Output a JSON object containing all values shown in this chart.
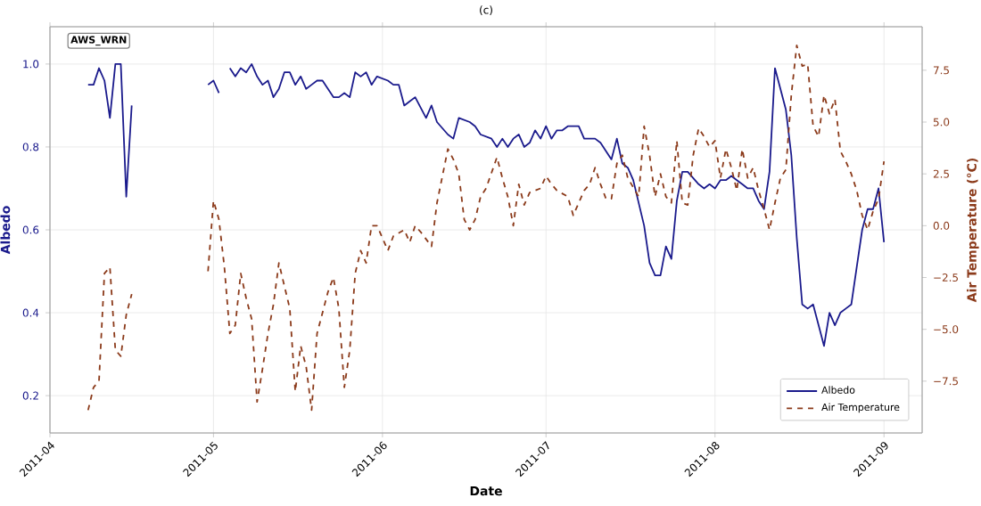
{
  "chart_data": {
    "type": "line",
    "title": "(c)",
    "xlabel": "Date",
    "ylabel": "Albedo",
    "y2label": "Air Temperature (°C)",
    "annotations": [
      "AWS_WRN"
    ],
    "xlim": [
      "2011-04-01",
      "2011-09-08"
    ],
    "xticks": [
      {
        "value": "2011-04-01",
        "label": "2011-04"
      },
      {
        "value": "2011-05-01",
        "label": "2011-05"
      },
      {
        "value": "2011-06-01",
        "label": "2011-06"
      },
      {
        "value": "2011-07-01",
        "label": "2011-07"
      },
      {
        "value": "2011-08-01",
        "label": "2011-08"
      },
      {
        "value": "2011-09-01",
        "label": "2011-09"
      }
    ],
    "ylim": [
      0.11,
      1.09
    ],
    "yticks": [
      0.2,
      0.4,
      0.6,
      0.8,
      {
        "value": 1.0,
        "label": "1.0"
      }
    ],
    "y2lim": [
      -10.0,
      9.6
    ],
    "y2ticks": [
      {
        "value": -7.5,
        "label": "−7.5"
      },
      {
        "value": -5.0,
        "label": "−5.0"
      },
      {
        "value": -2.5,
        "label": "−2.5"
      },
      {
        "value": 0.0,
        "label": "0.0"
      },
      {
        "value": 2.5,
        "label": "2.5"
      },
      {
        "value": 5.0,
        "label": "5.0"
      },
      {
        "value": 7.5,
        "label": "7.5"
      }
    ],
    "grid": true,
    "legend": "bottom right",
    "series": [
      {
        "name": "Albedo",
        "color": "#1a1a8c",
        "line_style": "solid",
        "x": [
          "2011-04-08",
          "2011-04-09",
          "2011-04-10",
          "2011-04-11",
          "2011-04-12",
          "2011-04-13",
          "2011-04-14",
          "2011-04-15",
          "2011-04-16",
          "2011-04-17",
          "2011-04-30",
          "2011-05-01",
          "2011-05-02",
          "2011-05-03",
          "2011-05-04",
          "2011-05-05",
          "2011-05-06",
          "2011-05-07",
          "2011-05-08",
          "2011-05-09",
          "2011-05-10",
          "2011-05-11",
          "2011-05-12",
          "2011-05-13",
          "2011-05-14",
          "2011-05-15",
          "2011-05-16",
          "2011-05-17",
          "2011-05-18",
          "2011-05-19",
          "2011-05-20",
          "2011-05-21",
          "2011-05-22",
          "2011-05-23",
          "2011-05-24",
          "2011-05-25",
          "2011-05-26",
          "2011-05-27",
          "2011-05-28",
          "2011-05-29",
          "2011-05-30",
          "2011-05-31",
          "2011-06-02",
          "2011-06-03",
          "2011-06-04",
          "2011-06-05",
          "2011-06-06",
          "2011-06-07",
          "2011-06-09",
          "2011-06-10",
          "2011-06-11",
          "2011-06-13",
          "2011-06-14",
          "2011-06-15",
          "2011-06-17",
          "2011-06-18",
          "2011-06-19",
          "2011-06-21",
          "2011-06-22",
          "2011-06-23",
          "2011-06-24",
          "2011-06-25",
          "2011-06-26",
          "2011-06-27",
          "2011-06-28",
          "2011-06-29",
          "2011-06-30",
          "2011-07-01",
          "2011-07-02",
          "2011-07-03",
          "2011-07-04",
          "2011-07-05",
          "2011-07-07",
          "2011-07-08",
          "2011-07-10",
          "2011-07-11",
          "2011-07-13",
          "2011-07-14",
          "2011-07-15",
          "2011-07-16",
          "2011-07-17",
          "2011-07-19",
          "2011-07-20",
          "2011-07-21",
          "2011-07-22",
          "2011-07-23",
          "2011-07-24",
          "2011-07-25",
          "2011-07-26",
          "2011-07-27",
          "2011-07-29",
          "2011-07-30",
          "2011-07-31",
          "2011-08-01",
          "2011-08-02",
          "2011-08-03",
          "2011-08-04",
          "2011-08-05",
          "2011-08-06",
          "2011-08-07",
          "2011-08-08",
          "2011-08-09",
          "2011-08-10",
          "2011-08-11",
          "2011-08-12",
          "2011-08-13",
          "2011-08-14",
          "2011-08-15",
          "2011-08-16",
          "2011-08-17",
          "2011-08-18",
          "2011-08-19",
          "2011-08-20",
          "2011-08-21",
          "2011-08-22",
          "2011-08-23",
          "2011-08-24",
          "2011-08-25",
          "2011-08-26",
          "2011-08-27",
          "2011-08-28",
          "2011-08-29",
          "2011-08-30",
          "2011-08-31",
          "2011-09-01"
        ],
        "values": [
          0.95,
          0.95,
          0.99,
          0.96,
          0.87,
          1.0,
          1.0,
          0.68,
          0.9,
          null,
          0.95,
          0.96,
          0.93,
          null,
          0.99,
          0.97,
          0.99,
          0.98,
          1.0,
          0.97,
          0.95,
          0.96,
          0.92,
          0.94,
          0.98,
          0.98,
          0.95,
          0.97,
          0.94,
          0.95,
          0.96,
          0.96,
          0.94,
          0.92,
          0.92,
          0.93,
          0.92,
          0.98,
          0.97,
          0.98,
          0.95,
          0.97,
          0.96,
          0.95,
          0.95,
          0.9,
          0.91,
          0.92,
          0.87,
          0.9,
          0.86,
          0.83,
          0.82,
          0.87,
          0.86,
          0.85,
          0.83,
          0.82,
          0.8,
          0.82,
          0.8,
          0.82,
          0.83,
          0.8,
          0.81,
          0.84,
          0.82,
          0.85,
          0.82,
          0.84,
          0.84,
          0.85,
          0.85,
          0.82,
          0.82,
          0.81,
          0.77,
          0.82,
          0.76,
          0.75,
          0.72,
          0.61,
          0.52,
          0.49,
          0.49,
          0.56,
          0.53,
          0.67,
          0.74,
          0.74,
          0.71,
          0.7,
          0.71,
          0.7,
          0.72,
          0.72,
          0.73,
          0.72,
          0.71,
          0.7,
          0.7,
          0.67,
          0.65,
          0.74,
          0.99,
          0.94,
          0.89,
          0.78,
          0.58,
          0.42,
          0.41,
          0.42,
          0.37,
          0.32,
          0.4,
          0.37,
          0.4,
          0.41,
          0.42,
          0.51,
          0.6,
          0.65,
          0.65,
          0.7,
          0.57
        ]
      },
      {
        "name": "Air Temperature",
        "color": "#8b3a1a",
        "line_style": "dashed",
        "axis": "y2",
        "x": [
          "2011-04-08",
          "2011-04-09",
          "2011-04-10",
          "2011-04-11",
          "2011-04-12",
          "2011-04-13",
          "2011-04-14",
          "2011-04-15",
          "2011-04-16",
          "2011-04-17",
          "2011-04-30",
          "2011-05-01",
          "2011-05-02",
          "2011-05-03",
          "2011-05-04",
          "2011-05-05",
          "2011-05-06",
          "2011-05-07",
          "2011-05-08",
          "2011-05-09",
          "2011-05-10",
          "2011-05-11",
          "2011-05-12",
          "2011-05-13",
          "2011-05-15",
          "2011-05-16",
          "2011-05-17",
          "2011-05-18",
          "2011-05-19",
          "2011-05-20",
          "2011-05-22",
          "2011-05-23",
          "2011-05-24",
          "2011-05-25",
          "2011-05-26",
          "2011-05-27",
          "2011-05-28",
          "2011-05-29",
          "2011-05-30",
          "2011-05-31",
          "2011-06-02",
          "2011-06-03",
          "2011-06-05",
          "2011-06-06",
          "2011-06-07",
          "2011-06-08",
          "2011-06-10",
          "2011-06-11",
          "2011-06-13",
          "2011-06-14",
          "2011-06-15",
          "2011-06-16",
          "2011-06-17",
          "2011-06-18",
          "2011-06-19",
          "2011-06-20",
          "2011-06-22",
          "2011-06-23",
          "2011-06-24",
          "2011-06-25",
          "2011-06-26",
          "2011-06-27",
          "2011-06-28",
          "2011-06-30",
          "2011-07-01",
          "2011-07-02",
          "2011-07-03",
          "2011-07-05",
          "2011-07-06",
          "2011-07-08",
          "2011-07-09",
          "2011-07-10",
          "2011-07-11",
          "2011-07-12",
          "2011-07-13",
          "2011-07-14",
          "2011-07-15",
          "2011-07-16",
          "2011-07-18",
          "2011-07-19",
          "2011-07-20",
          "2011-07-21",
          "2011-07-22",
          "2011-07-23",
          "2011-07-24",
          "2011-07-25",
          "2011-07-26",
          "2011-07-27",
          "2011-07-28",
          "2011-07-29",
          "2011-07-30",
          "2011-07-31",
          "2011-08-01",
          "2011-08-02",
          "2011-08-03",
          "2011-08-04",
          "2011-08-05",
          "2011-08-06",
          "2011-08-07",
          "2011-08-08",
          "2011-08-09",
          "2011-08-10",
          "2011-08-11",
          "2011-08-12",
          "2011-08-13",
          "2011-08-14",
          "2011-08-15",
          "2011-08-16",
          "2011-08-17",
          "2011-08-18",
          "2011-08-19",
          "2011-08-20",
          "2011-08-21",
          "2011-08-22",
          "2011-08-23",
          "2011-08-24",
          "2011-08-25",
          "2011-08-26",
          "2011-08-27",
          "2011-08-28",
          "2011-08-29",
          "2011-08-30",
          "2011-08-31",
          "2011-09-01"
        ],
        "values": [
          -8.9,
          -7.8,
          -7.5,
          -2.3,
          -2.0,
          -6.0,
          -6.3,
          -4.3,
          -3.3,
          null,
          -2.2,
          1.2,
          0.3,
          -2.0,
          -5.2,
          -4.8,
          -2.3,
          -3.5,
          -4.5,
          -8.5,
          -6.9,
          -5.2,
          -3.8,
          -1.8,
          -4.0,
          -8.0,
          -5.8,
          -6.8,
          -8.9,
          -5.2,
          -3.2,
          -2.5,
          -4.0,
          -7.8,
          -6.0,
          -2.3,
          -1.2,
          -1.8,
          0.0,
          0.0,
          -1.2,
          -0.5,
          -0.2,
          -0.8,
          0.0,
          -0.3,
          -1.0,
          1.1,
          3.7,
          3.2,
          2.5,
          0.3,
          -0.2,
          0.3,
          1.4,
          1.8,
          3.3,
          2.3,
          1.4,
          0.0,
          2.0,
          1.0,
          1.6,
          1.8,
          2.4,
          2.0,
          1.7,
          1.4,
          0.5,
          1.7,
          2.0,
          2.8,
          2.0,
          1.3,
          1.3,
          3.0,
          3.4,
          2.3,
          1.4,
          4.8,
          3.4,
          1.4,
          2.5,
          1.4,
          1.1,
          4.1,
          1.1,
          1.0,
          3.4,
          4.7,
          4.3,
          3.8,
          4.1,
          2.3,
          3.7,
          2.8,
          1.7,
          3.7,
          2.3,
          2.8,
          1.7,
          0.8,
          -0.2,
          1.1,
          2.3,
          2.7,
          6.3,
          8.7,
          7.7,
          7.8,
          4.8,
          4.3,
          6.3,
          5.4,
          6.1,
          3.6,
          3.1,
          2.5,
          1.7,
          0.5,
          -0.2,
          0.7,
          1.3,
          3.1
        ]
      }
    ]
  }
}
